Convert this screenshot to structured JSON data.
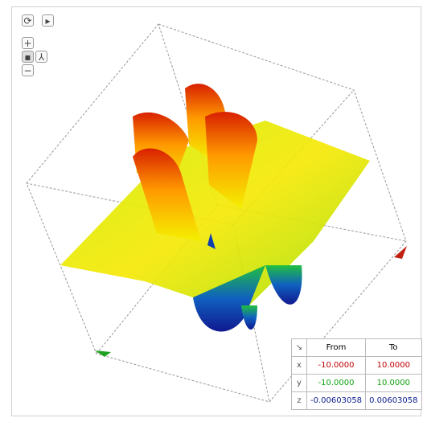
{
  "controls": {
    "zoom_in": "+",
    "zoom_out": "−"
  },
  "table": {
    "corner": "↘",
    "header": [
      "From",
      "To"
    ],
    "rows": [
      [
        "x",
        "-10.0000",
        "10.0000"
      ],
      [
        "y",
        "-10.0000",
        "10.0000"
      ],
      [
        "z",
        "-0.00603058",
        "0.00603058"
      ]
    ]
  }
}
